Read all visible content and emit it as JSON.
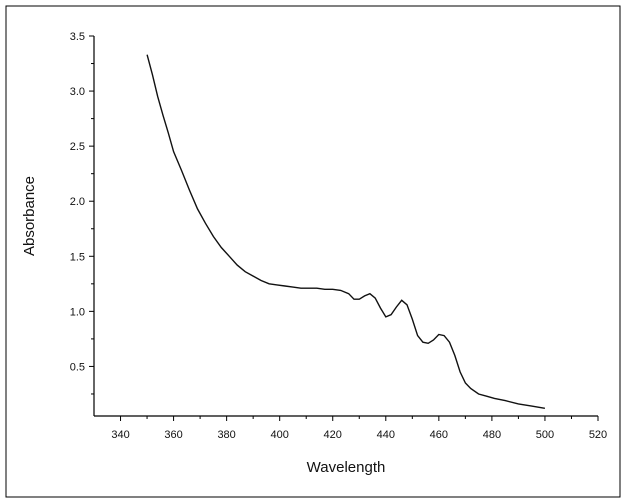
{
  "chart_data": {
    "type": "line",
    "title": "",
    "xlabel": "Wavelength",
    "ylabel": "Absorbance",
    "xlim": [
      330,
      520
    ],
    "ylim": [
      0.05,
      3.5
    ],
    "xticks": [
      340,
      360,
      380,
      400,
      420,
      440,
      460,
      480,
      500,
      520
    ],
    "xtick_labels": [
      "340",
      "360",
      "380",
      "400",
      "420",
      "440",
      "460",
      "480",
      "500",
      "520"
    ],
    "yticks": [
      0.5,
      1.0,
      1.5,
      2.0,
      2.5,
      3.0,
      3.5
    ],
    "ytick_labels": [
      "0.5",
      "1.0",
      "1.5",
      "2.0",
      "2.5",
      "3.0",
      "3.5"
    ],
    "grid": false,
    "legend": "none",
    "line_color": "#111111",
    "series": [
      {
        "x": [
          350,
          352,
          354,
          356,
          358,
          360,
          363,
          366,
          369,
          372,
          375,
          378,
          381,
          384,
          387,
          390,
          393,
          396,
          399,
          402,
          405,
          408,
          411,
          414,
          417,
          420,
          423,
          426,
          428,
          430,
          432,
          434,
          436,
          438,
          440,
          442,
          444,
          446,
          448,
          450,
          452,
          454,
          456,
          458,
          460,
          462,
          464,
          466,
          468,
          470,
          472,
          475,
          478,
          481,
          485,
          490,
          495,
          500
        ],
        "y": [
          3.33,
          3.15,
          2.95,
          2.78,
          2.62,
          2.45,
          2.28,
          2.1,
          1.93,
          1.8,
          1.68,
          1.58,
          1.5,
          1.42,
          1.36,
          1.32,
          1.28,
          1.25,
          1.24,
          1.23,
          1.22,
          1.21,
          1.21,
          1.21,
          1.2,
          1.2,
          1.19,
          1.16,
          1.11,
          1.11,
          1.14,
          1.16,
          1.12,
          1.03,
          0.95,
          0.97,
          1.04,
          1.1,
          1.06,
          0.93,
          0.78,
          0.72,
          0.71,
          0.74,
          0.79,
          0.78,
          0.72,
          0.6,
          0.45,
          0.35,
          0.3,
          0.25,
          0.23,
          0.21,
          0.19,
          0.16,
          0.14,
          0.12
        ]
      }
    ]
  }
}
